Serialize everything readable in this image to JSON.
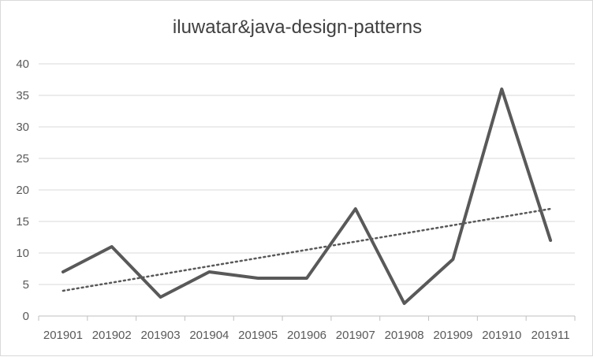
{
  "chart_data": {
    "type": "line",
    "title": "iluwatar&java-design-patterns",
    "xlabel": "",
    "ylabel": "",
    "categories": [
      "201901",
      "201902",
      "201903",
      "201904",
      "201905",
      "201906",
      "201907",
      "201908",
      "201909",
      "201910",
      "201911"
    ],
    "series": [
      {
        "values": [
          7,
          11,
          3,
          7,
          6,
          6,
          17,
          2,
          9,
          36,
          12
        ],
        "color": "#595959"
      }
    ],
    "trendline": {
      "type": "linear",
      "start": 4,
      "end": 17,
      "style": "dotted",
      "color": "#595959"
    },
    "ylim": [
      0,
      40
    ],
    "yticks": [
      0,
      5,
      10,
      15,
      20,
      25,
      30,
      35,
      40
    ],
    "grid": true,
    "legend": "none"
  }
}
